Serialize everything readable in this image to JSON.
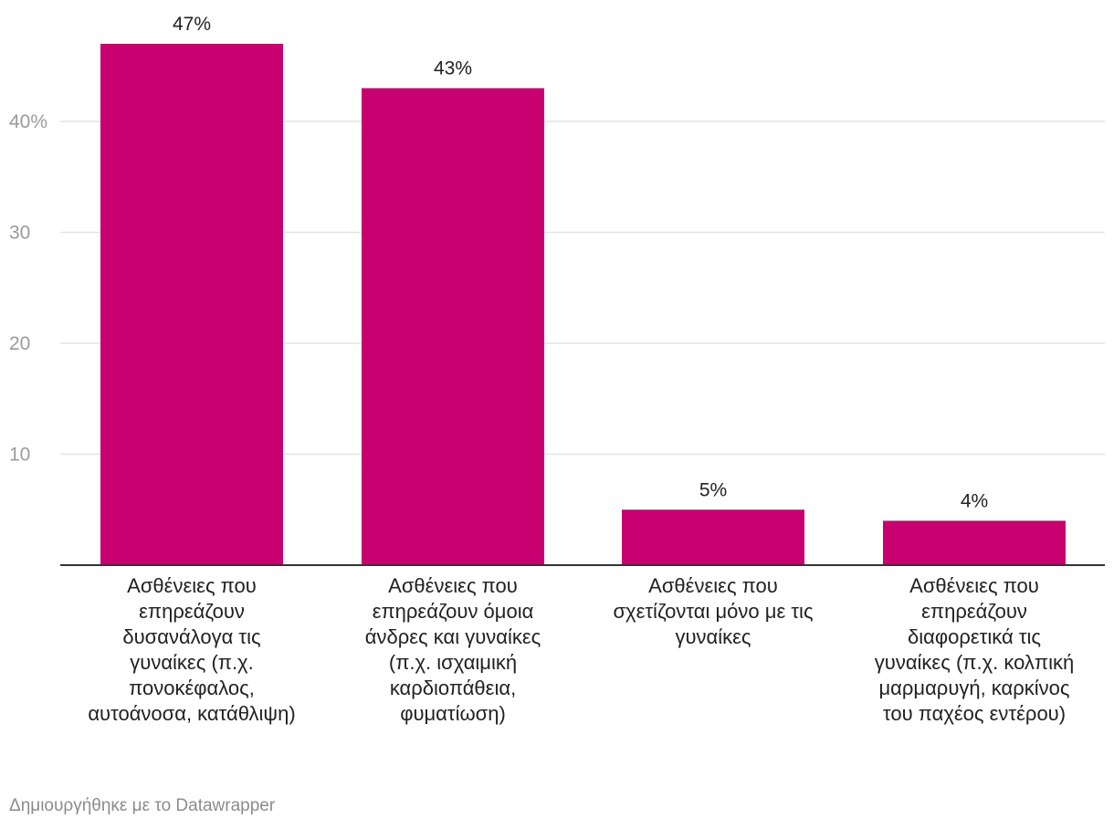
{
  "chart_data": {
    "type": "bar",
    "title": "",
    "xlabel": "",
    "ylabel": "",
    "categories": [
      "Ασθένειες που επηρεάζουν δυσανάλογα τις γυναίκες (π.χ. πονοκέφαλος, αυτοάνοσα, κατάθλιψη)",
      "Ασθένειες που επηρεάζουν όμοια άνδρες και γυναίκες (π.χ. ισχαιμική καρδιοπάθεια, φυματίωση)",
      "Ασθένειες που σχετίζονται μόνο με τις γυναίκες",
      "Ασθένειες που επηρεάζουν διαφορετικά τις γυναίκες (π.χ. κολπική μαρμαρυγή, καρκίνος του παχέος εντέρου)"
    ],
    "values": [
      47,
      43,
      5,
      4
    ],
    "value_labels": [
      "47%",
      "43%",
      "5%",
      "4%"
    ],
    "y_ticks": [
      10,
      20,
      30,
      40
    ],
    "y_tick_labels": [
      "10",
      "20",
      "30",
      "40%"
    ],
    "ylim": [
      0,
      50
    ],
    "grid": true,
    "bar_color": "#c9006f"
  },
  "footer": {
    "credit": "Δημιουργήθηκε με το Datawrapper"
  }
}
